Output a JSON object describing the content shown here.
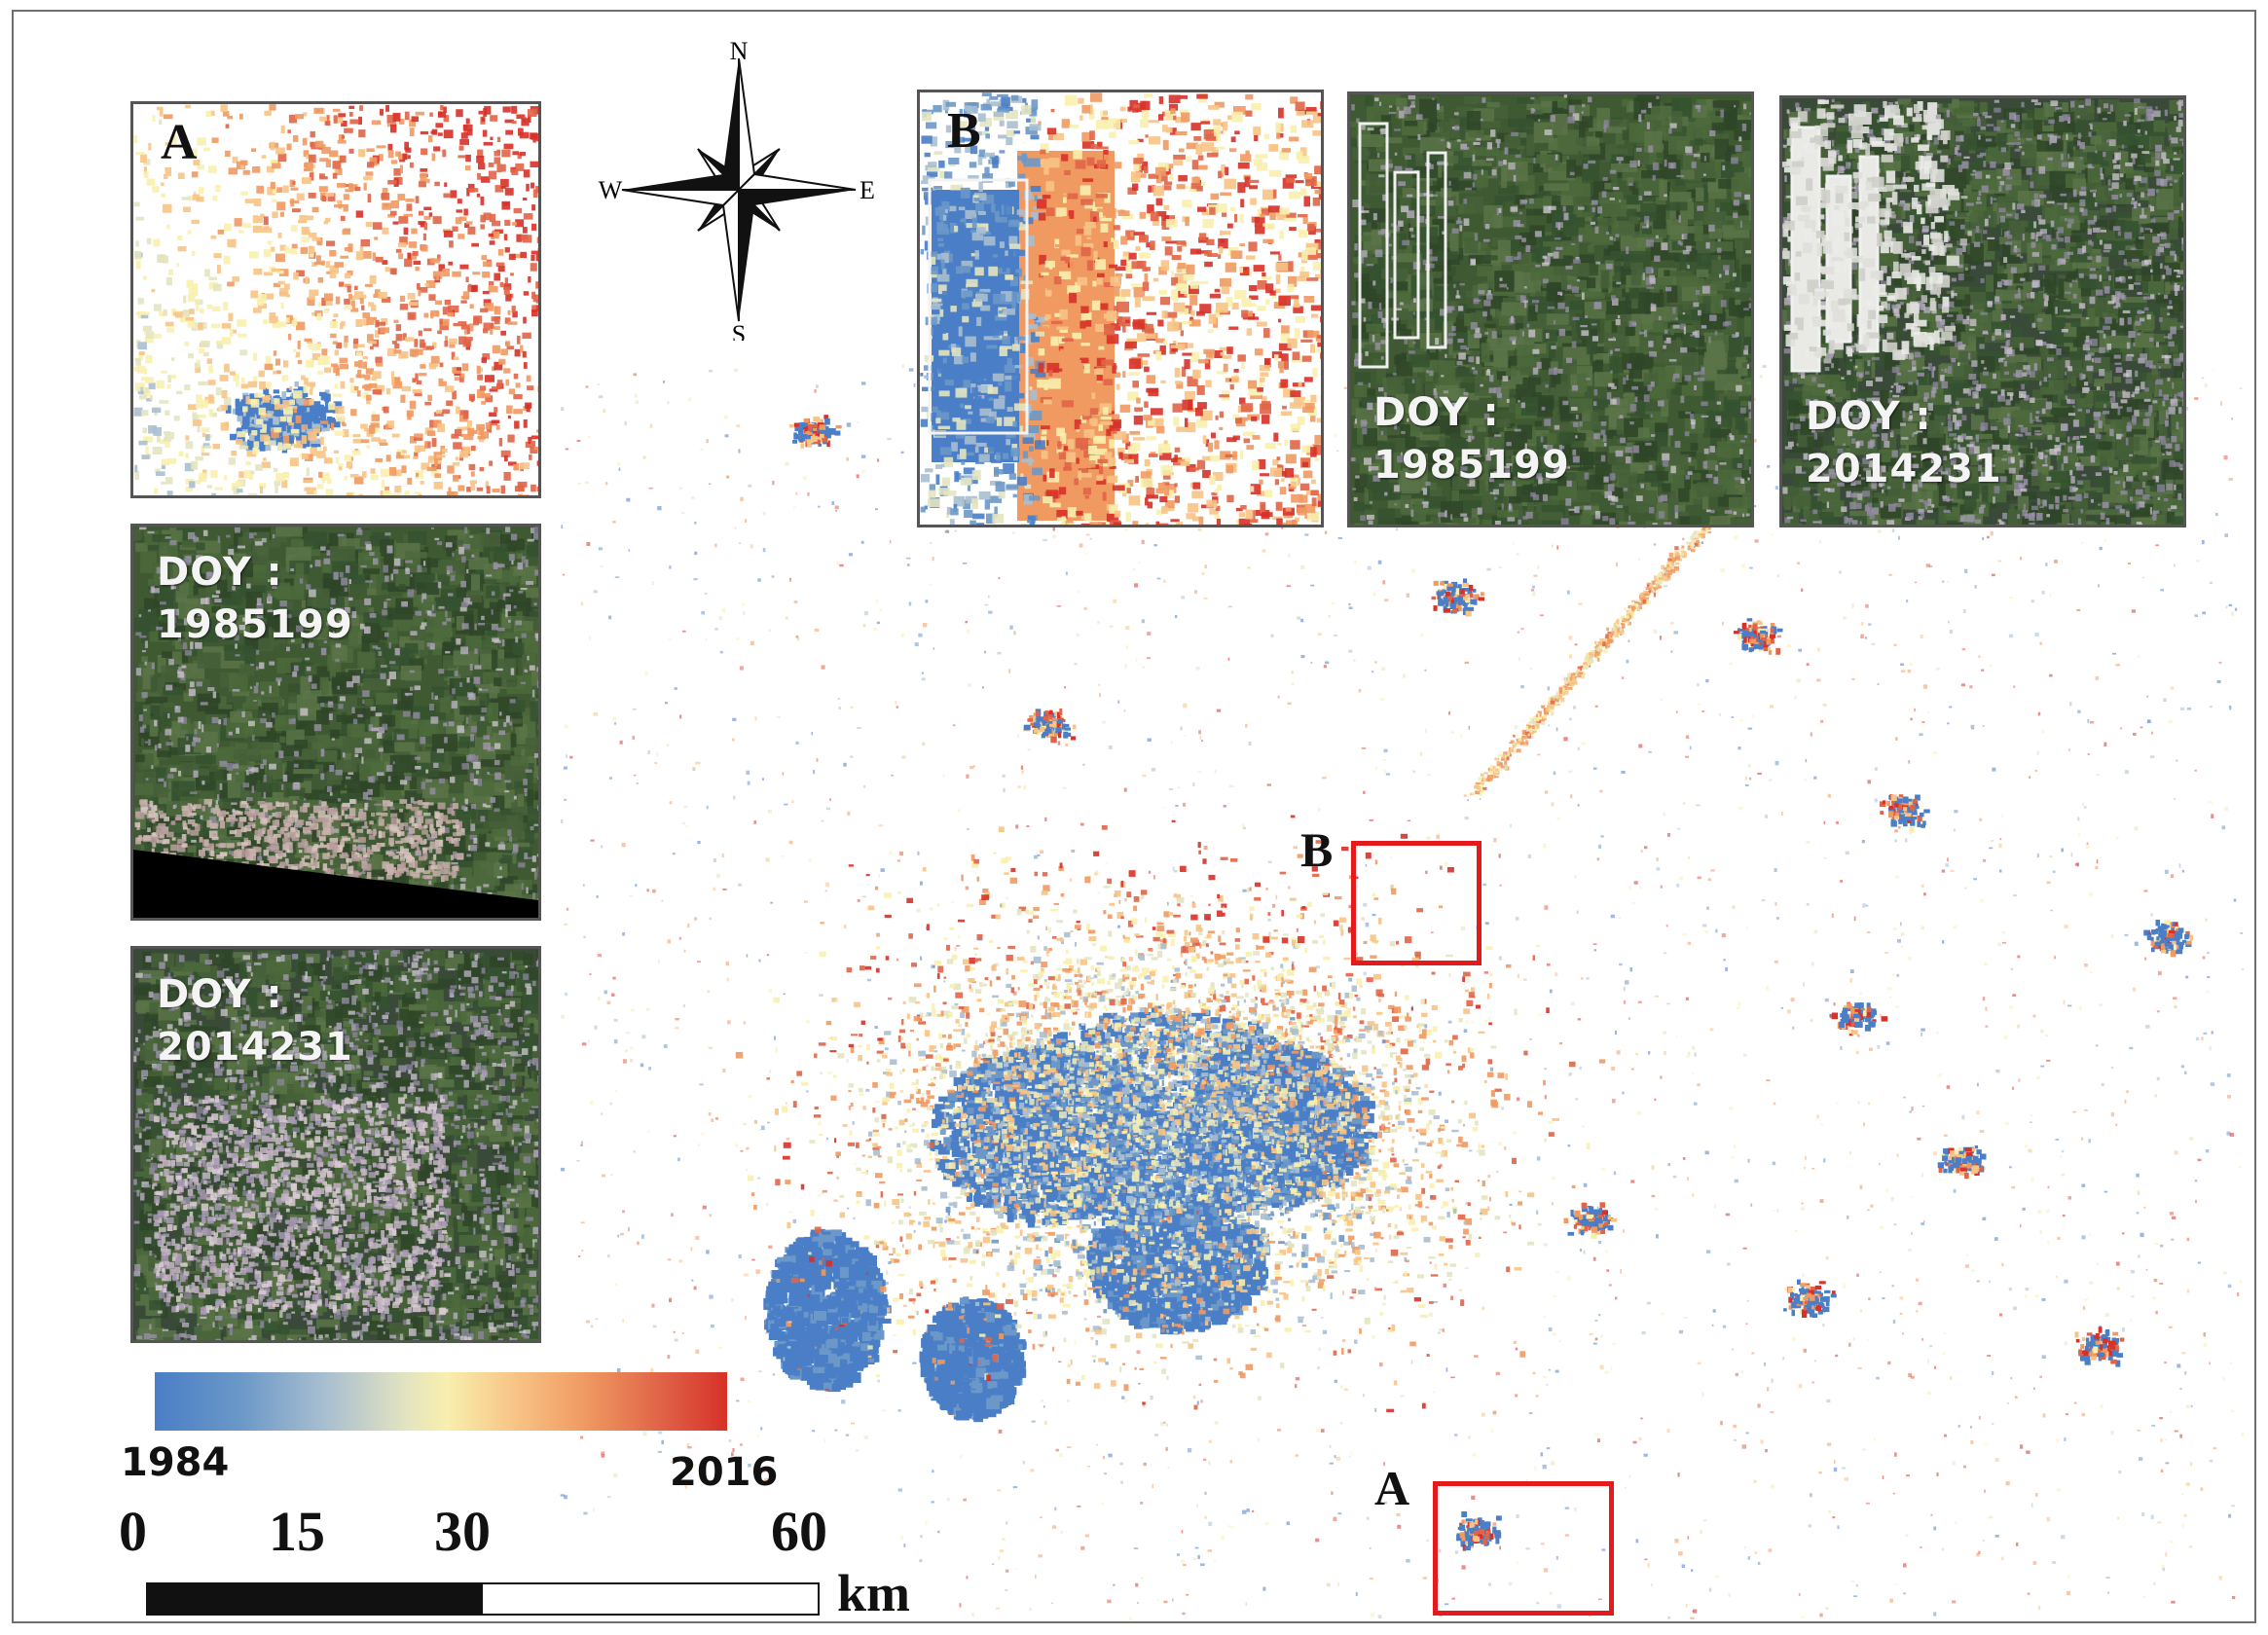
{
  "compass": {
    "north": "N",
    "south": "S",
    "east": "E",
    "west": "W"
  },
  "insets": {
    "change_a": {
      "letter": "A"
    },
    "change_b": {
      "letter": "B"
    },
    "sat_a_1985": {
      "label_line1": "DOY :",
      "label_line2": "1985199"
    },
    "sat_a_2014": {
      "label_line1": "DOY :",
      "label_line2": "2014231"
    },
    "sat_b_1985": {
      "label_line1": "DOY :",
      "label_line2": "1985199"
    },
    "sat_b_2014": {
      "label_line1": "DOY :",
      "label_line2": "2014231"
    }
  },
  "regions": {
    "a_label": "A",
    "b_label": "B"
  },
  "legend": {
    "start_year": "1984",
    "end_year": "2016",
    "colors": [
      "#4a7ec6",
      "#a9bfd0",
      "#f8efae",
      "#f09a62",
      "#d73128"
    ]
  },
  "scale_bar": {
    "ticks": [
      "0",
      "15",
      "30",
      "60"
    ],
    "unit": "km",
    "filled_fraction": 0.5
  },
  "colors": {
    "roi_border": "#e41a1c",
    "vegetation": "#3f5a33",
    "urban_old": "#4a7ec6",
    "urban_new": "#d73128"
  }
}
